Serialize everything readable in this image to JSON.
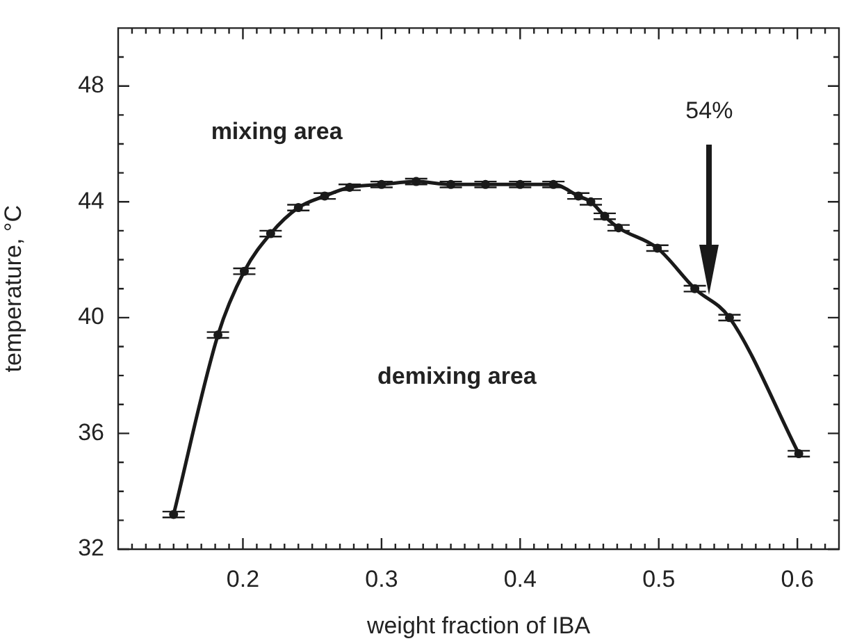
{
  "chart_data": {
    "type": "line",
    "xlabel": "weight fraction of IBA",
    "ylabel": "temperature, °C",
    "x": [
      0.15,
      0.182,
      0.201,
      0.22,
      0.24,
      0.259,
      0.277,
      0.3,
      0.325,
      0.35,
      0.375,
      0.4,
      0.424,
      0.442,
      0.451,
      0.461,
      0.471,
      0.499,
      0.526,
      0.551,
      0.601
    ],
    "series": [
      {
        "color": "#1a1a1a",
        "values": [
          33.2,
          39.4,
          41.6,
          42.9,
          43.8,
          44.2,
          44.5,
          44.6,
          44.7,
          44.6,
          44.6,
          44.6,
          44.6,
          44.2,
          44.0,
          43.5,
          43.1,
          42.4,
          41.0,
          40.0,
          35.3
        ],
        "errors": [
          0.1,
          0.1,
          0.1,
          0.1,
          0.1,
          0.1,
          0.1,
          0.1,
          0.1,
          0.1,
          0.1,
          0.1,
          0.1,
          0.1,
          0.1,
          0.1,
          0.1,
          0.1,
          0.1,
          0.1,
          0.1
        ]
      }
    ],
    "xlim": [
      0.11,
      0.63
    ],
    "xticks": [
      {
        "value": 0.12,
        "label": null
      },
      {
        "value": 0.13,
        "label": null
      },
      {
        "value": 0.14,
        "label": null
      },
      {
        "value": 0.15,
        "label": null
      },
      {
        "value": 0.16,
        "label": null
      },
      {
        "value": 0.17,
        "label": null
      },
      {
        "value": 0.18,
        "label": null
      },
      {
        "value": 0.19,
        "label": null
      },
      0.2,
      {
        "value": 0.21,
        "label": null
      },
      {
        "value": 0.22,
        "label": null
      },
      {
        "value": 0.23,
        "label": null
      },
      {
        "value": 0.24,
        "label": null
      },
      {
        "value": 0.25,
        "label": null
      },
      {
        "value": 0.26,
        "label": null
      },
      {
        "value": 0.27,
        "label": null
      },
      {
        "value": 0.28,
        "label": null
      },
      {
        "value": 0.29,
        "label": null
      },
      0.3,
      {
        "value": 0.31,
        "label": null
      },
      {
        "value": 0.32,
        "label": null
      },
      {
        "value": 0.33,
        "label": null
      },
      {
        "value": 0.34,
        "label": null
      },
      {
        "value": 0.35,
        "label": null
      },
      {
        "value": 0.36,
        "label": null
      },
      {
        "value": 0.37,
        "label": null
      },
      {
        "value": 0.38,
        "label": null
      },
      {
        "value": 0.39,
        "label": null
      },
      0.4,
      {
        "value": 0.41,
        "label": null
      },
      {
        "value": 0.42,
        "label": null
      },
      {
        "value": 0.43,
        "label": null
      },
      {
        "value": 0.44,
        "label": null
      },
      {
        "value": 0.45,
        "label": null
      },
      {
        "value": 0.46,
        "label": null
      },
      {
        "value": 0.47,
        "label": null
      },
      {
        "value": 0.48,
        "label": null
      },
      {
        "value": 0.49,
        "label": null
      },
      0.5,
      {
        "value": 0.51,
        "label": null
      },
      {
        "value": 0.52,
        "label": null
      },
      {
        "value": 0.53,
        "label": null
      },
      {
        "value": 0.54,
        "label": null
      },
      {
        "value": 0.55,
        "label": null
      },
      {
        "value": 0.56,
        "label": null
      },
      {
        "value": 0.57,
        "label": null
      },
      {
        "value": 0.58,
        "label": null
      },
      {
        "value": 0.59,
        "label": null
      },
      0.6,
      {
        "value": 0.61,
        "label": null
      },
      {
        "value": 0.62,
        "label": null
      }
    ],
    "ylim": [
      32,
      50
    ],
    "yticks": [
      32,
      {
        "value": 33,
        "label": null
      },
      {
        "value": 34,
        "label": null
      },
      {
        "value": 35,
        "label": null
      },
      36,
      {
        "value": 37,
        "label": null
      },
      {
        "value": 38,
        "label": null
      },
      {
        "value": 39,
        "label": null
      },
      40,
      {
        "value": 41,
        "label": null
      },
      {
        "value": 42,
        "label": null
      },
      {
        "value": 43,
        "label": null
      },
      44,
      {
        "value": 45,
        "label": null
      },
      {
        "value": 46,
        "label": null
      },
      {
        "value": 47,
        "label": null
      },
      48,
      {
        "value": 49,
        "label": null
      }
    ],
    "marker": "circle",
    "line_style": "solid",
    "grid": false,
    "legend": false,
    "annotations": [
      "mixing area",
      "demixing area",
      "54%"
    ]
  }
}
